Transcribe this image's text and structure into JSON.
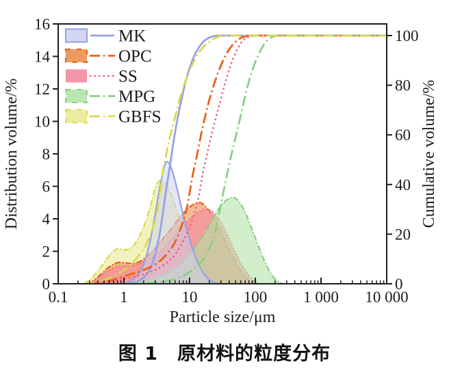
{
  "figure": {
    "caption": "图 1　原材料的粒度分布"
  },
  "chart_data": {
    "type": "area",
    "subtype": "particle-size-distribution-with-cumulative-lines",
    "title": "",
    "grid": false,
    "legend_position": "top-left",
    "frame_color": "#1c1c1c",
    "x_axis": {
      "label": "Particle size/μm",
      "scale": "log",
      "min": 0.1,
      "max": 10000,
      "tick_values": [
        0.1,
        1,
        10,
        100,
        1000,
        10000
      ],
      "tick_labels": [
        "0.1",
        "1",
        "10",
        "100",
        "1 000",
        "10 000"
      ]
    },
    "y_left": {
      "label": "Distribution volume/%",
      "min": 0,
      "max": 16,
      "ticks": [
        0,
        2,
        4,
        6,
        8,
        10,
        12,
        14,
        16
      ]
    },
    "y_right": {
      "label": "Cumulative volume/%",
      "min": 0,
      "max": 100,
      "ticks": [
        0,
        20,
        40,
        60,
        80,
        100
      ]
    },
    "fill_draw_order": [
      "GBFS",
      "OPC",
      "SS",
      "MPG",
      "MK"
    ],
    "series": [
      {
        "name": "MK",
        "line_color": "#96a2e2",
        "fill_color": "#cdd2f2",
        "fill_opacity": 0.55,
        "dash": "solid",
        "distribution": [
          [
            0.9,
            0
          ],
          [
            1.2,
            0.1
          ],
          [
            1.6,
            0.5
          ],
          [
            2,
            1.2
          ],
          [
            2.5,
            2.6
          ],
          [
            3,
            4.3
          ],
          [
            3.5,
            5.9
          ],
          [
            4,
            7.0
          ],
          [
            4.4,
            7.5
          ],
          [
            5,
            7.35
          ],
          [
            5.6,
            6.8
          ],
          [
            6.5,
            5.8
          ],
          [
            7.5,
            4.7
          ],
          [
            9,
            3.4
          ],
          [
            11,
            2.2
          ],
          [
            13,
            1.4
          ],
          [
            16,
            0.7
          ],
          [
            20,
            0.25
          ],
          [
            25,
            0.05
          ],
          [
            28,
            0
          ]
        ],
        "cumulative": [
          [
            0.9,
            0
          ],
          [
            1.5,
            0.7
          ],
          [
            2,
            2.5
          ],
          [
            2.5,
            6
          ],
          [
            3,
            12
          ],
          [
            3.5,
            20
          ],
          [
            4,
            30
          ],
          [
            4.4,
            38
          ],
          [
            5,
            47
          ],
          [
            5.6,
            56
          ],
          [
            6.5,
            66
          ],
          [
            7.5,
            74
          ],
          [
            9,
            83
          ],
          [
            11,
            90
          ],
          [
            13,
            94
          ],
          [
            16,
            97.4
          ],
          [
            20,
            99.2
          ],
          [
            25,
            99.9
          ],
          [
            30,
            100
          ],
          [
            60,
            100
          ],
          [
            300,
            100
          ],
          [
            10000,
            100
          ]
        ]
      },
      {
        "name": "OPC",
        "line_color": "#ea5f17",
        "fill_color": "#ec8f4e",
        "fill_opacity": 0.6,
        "dash": "dash-dot",
        "distribution": [
          [
            0.3,
            0
          ],
          [
            0.45,
            0.6
          ],
          [
            0.6,
            1.05
          ],
          [
            0.8,
            1.3
          ],
          [
            1,
            1.3
          ],
          [
            1.3,
            1.25
          ],
          [
            1.7,
            1.35
          ],
          [
            2.2,
            1.65
          ],
          [
            3,
            2.2
          ],
          [
            4,
            2.8
          ],
          [
            5.5,
            3.5
          ],
          [
            7,
            4.05
          ],
          [
            9,
            4.55
          ],
          [
            11,
            4.85
          ],
          [
            13,
            5.0
          ],
          [
            15.5,
            4.95
          ],
          [
            19,
            4.6
          ],
          [
            24,
            4.0
          ],
          [
            30,
            3.2
          ],
          [
            38,
            2.3
          ],
          [
            48,
            1.5
          ],
          [
            60,
            0.8
          ],
          [
            75,
            0.3
          ],
          [
            90,
            0.05
          ],
          [
            100,
            0
          ]
        ],
        "cumulative": [
          [
            0.3,
            0
          ],
          [
            0.6,
            1.2
          ],
          [
            1,
            3
          ],
          [
            1.5,
            4.4
          ],
          [
            2,
            5.5
          ],
          [
            3,
            7.8
          ],
          [
            4,
            10.5
          ],
          [
            5.5,
            15
          ],
          [
            7,
            21
          ],
          [
            9,
            30
          ],
          [
            11,
            43
          ],
          [
            13,
            52
          ],
          [
            15.5,
            62
          ],
          [
            19,
            72
          ],
          [
            24,
            81
          ],
          [
            30,
            88
          ],
          [
            38,
            93.5
          ],
          [
            48,
            97
          ],
          [
            60,
            99
          ],
          [
            75,
            99.8
          ],
          [
            85,
            100
          ],
          [
            150,
            100
          ],
          [
            1000,
            100
          ],
          [
            10000,
            100
          ]
        ]
      },
      {
        "name": "SS",
        "line_color": "#f4607e",
        "fill_color": "#f4899e",
        "fill_opacity": 0.65,
        "dash": "dot",
        "distribution": [
          [
            0.3,
            0
          ],
          [
            0.45,
            0.5
          ],
          [
            0.6,
            0.85
          ],
          [
            0.8,
            1.05
          ],
          [
            1,
            1.1
          ],
          [
            1.4,
            1.15
          ],
          [
            2,
            1.35
          ],
          [
            2.8,
            1.7
          ],
          [
            4,
            2.2
          ],
          [
            5.5,
            2.8
          ],
          [
            7,
            3.3
          ],
          [
            9,
            3.8
          ],
          [
            12,
            4.25
          ],
          [
            15,
            4.5
          ],
          [
            18,
            4.6
          ],
          [
            22,
            4.45
          ],
          [
            27,
            4.05
          ],
          [
            34,
            3.4
          ],
          [
            42,
            2.6
          ],
          [
            52,
            1.8
          ],
          [
            65,
            1.05
          ],
          [
            80,
            0.5
          ],
          [
            100,
            0.12
          ],
          [
            115,
            0
          ]
        ],
        "cumulative": [
          [
            0.3,
            0
          ],
          [
            0.6,
            0.8
          ],
          [
            1,
            2
          ],
          [
            2,
            3.8
          ],
          [
            3,
            5.6
          ],
          [
            4,
            7.5
          ],
          [
            5.5,
            10.5
          ],
          [
            7,
            14.5
          ],
          [
            9,
            20
          ],
          [
            11,
            26
          ],
          [
            13.5,
            34
          ],
          [
            16,
            45
          ],
          [
            18,
            51
          ],
          [
            22,
            61
          ],
          [
            27,
            70
          ],
          [
            34,
            80
          ],
          [
            42,
            88
          ],
          [
            52,
            94
          ],
          [
            65,
            98
          ],
          [
            80,
            99.5
          ],
          [
            100,
            99.9
          ],
          [
            110,
            100
          ],
          [
            200,
            100
          ],
          [
            1000,
            100
          ],
          [
            10000,
            100
          ]
        ]
      },
      {
        "name": "MPG",
        "line_color": "#85d27f",
        "fill_color": "#b4e2a8",
        "fill_opacity": 0.6,
        "dash": "dash-dot",
        "distribution": [
          [
            1.2,
            0
          ],
          [
            2,
            0.15
          ],
          [
            3,
            0.35
          ],
          [
            4.5,
            0.65
          ],
          [
            6.5,
            1.05
          ],
          [
            9,
            1.6
          ],
          [
            13,
            2.4
          ],
          [
            18,
            3.3
          ],
          [
            24,
            4.2
          ],
          [
            31,
            4.9
          ],
          [
            40,
            5.25
          ],
          [
            48,
            5.3
          ],
          [
            58,
            5.0
          ],
          [
            72,
            4.3
          ],
          [
            90,
            3.3
          ],
          [
            115,
            2.2
          ],
          [
            145,
            1.2
          ],
          [
            185,
            0.45
          ],
          [
            230,
            0.1
          ],
          [
            270,
            0
          ]
        ],
        "cumulative": [
          [
            1.2,
            0
          ],
          [
            3,
            0.6
          ],
          [
            5,
            1.4
          ],
          [
            7,
            2.5
          ],
          [
            9,
            4
          ],
          [
            13,
            7
          ],
          [
            18,
            12
          ],
          [
            24,
            20
          ],
          [
            31,
            34
          ],
          [
            40,
            48
          ],
          [
            48,
            57
          ],
          [
            58,
            66
          ],
          [
            72,
            77
          ],
          [
            90,
            86
          ],
          [
            115,
            93
          ],
          [
            145,
            97.5
          ],
          [
            185,
            99.5
          ],
          [
            230,
            100
          ],
          [
            300,
            100
          ],
          [
            1000,
            100
          ],
          [
            10000,
            100
          ]
        ]
      },
      {
        "name": "GBFS",
        "line_color": "#d8d84e",
        "fill_color": "#ebea93",
        "fill_opacity": 0.6,
        "dash": "dash-dot",
        "distribution": [
          [
            0.25,
            0
          ],
          [
            0.35,
            0.5
          ],
          [
            0.5,
            1.3
          ],
          [
            0.65,
            1.9
          ],
          [
            0.8,
            2.15
          ],
          [
            1,
            2.1
          ],
          [
            1.2,
            2.15
          ],
          [
            1.5,
            2.5
          ],
          [
            2,
            3.5
          ],
          [
            2.5,
            4.7
          ],
          [
            3,
            5.9
          ],
          [
            3.4,
            6.3
          ],
          [
            3.8,
            6.35
          ],
          [
            4.5,
            6.1
          ],
          [
            5.5,
            5.3
          ],
          [
            6.5,
            4.4
          ],
          [
            8,
            3.4
          ],
          [
            10,
            2.5
          ],
          [
            13,
            1.7
          ],
          [
            17,
            1.05
          ],
          [
            22,
            0.55
          ],
          [
            28,
            0.2
          ],
          [
            35,
            0
          ]
        ],
        "cumulative": [
          [
            0.25,
            0
          ],
          [
            0.5,
            1.5
          ],
          [
            0.8,
            4
          ],
          [
            1,
            5.5
          ],
          [
            1.3,
            8
          ],
          [
            1.7,
            11.5
          ],
          [
            2.2,
            16
          ],
          [
            2.8,
            23
          ],
          [
            3.3,
            31
          ],
          [
            3.9,
            45
          ],
          [
            4.4,
            52
          ],
          [
            5,
            59
          ],
          [
            6,
            67
          ],
          [
            7,
            74
          ],
          [
            8.5,
            81
          ],
          [
            10,
            86
          ],
          [
            13,
            92
          ],
          [
            17,
            96
          ],
          [
            22,
            98.3
          ],
          [
            28,
            99.6
          ],
          [
            34,
            100
          ],
          [
            70,
            100
          ],
          [
            300,
            100
          ],
          [
            10000,
            100
          ]
        ]
      }
    ]
  }
}
